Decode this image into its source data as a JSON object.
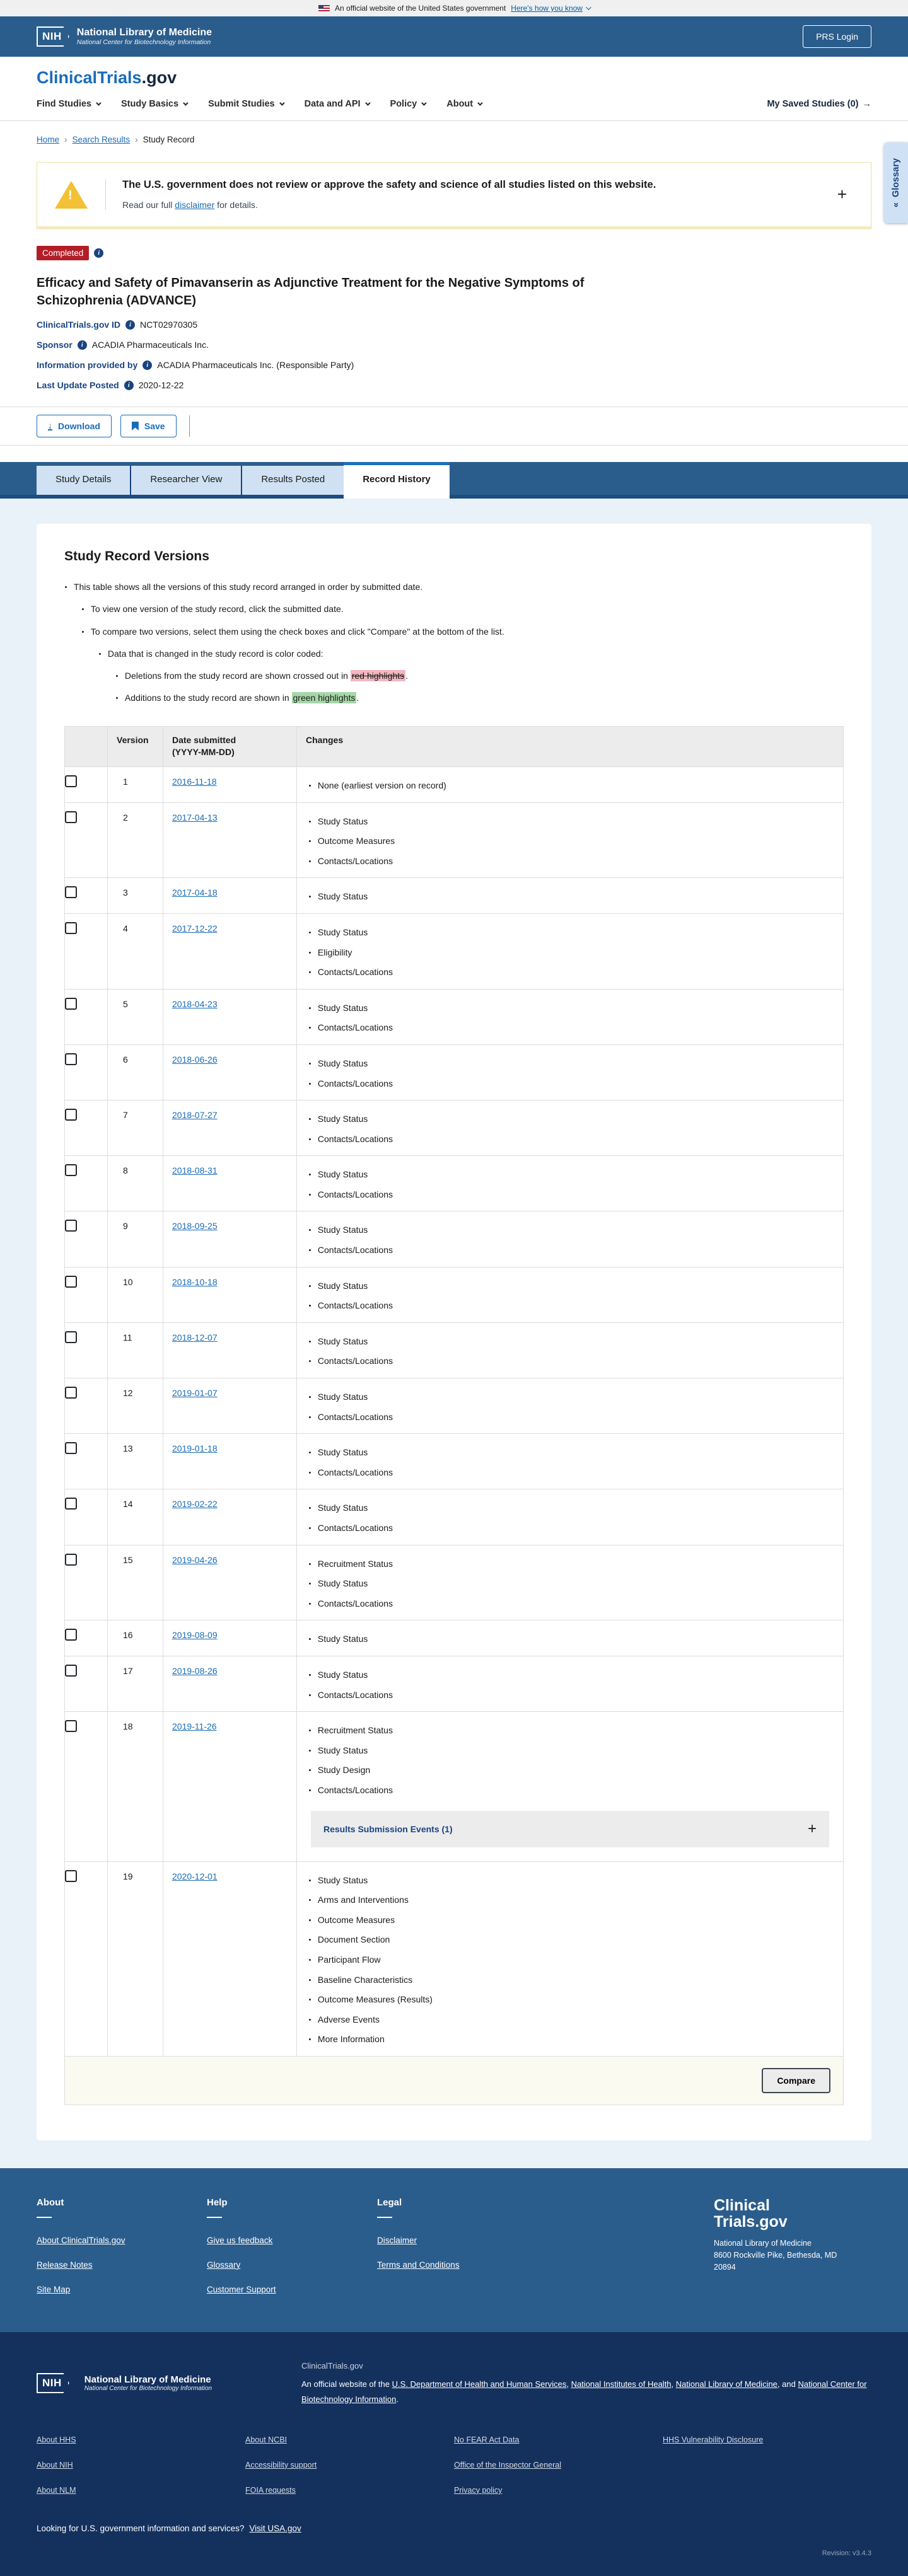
{
  "icons": {
    "flag": "us-flag",
    "caret": "chevron-down",
    "breadcrumb_separator": "›",
    "bullet": "•",
    "plus": "+",
    "chevron_left_double": "«",
    "arrow_right": "→",
    "info": "i",
    "download_arrow": "↓"
  },
  "colors": {
    "header_blue": "#2b5d8c",
    "dark_navy": "#1a4480",
    "accent_blue": "#1c6fbe",
    "link_blue": "#1a6cb8",
    "status_red": "#b21e28",
    "footer_dark": "#14315e",
    "red_highlight": "#f3b7bf",
    "green_highlight": "#a6d7a8"
  },
  "banner": {
    "official": "An official website of the United States government",
    "how": "Here's how you know"
  },
  "nlm_header": {
    "nih": "NIH",
    "org": "National Library of Medicine",
    "sub": "National Center for Biotechnology Information",
    "prs": "PRS Login"
  },
  "site": {
    "logo_main": "ClinicalTrials",
    "logo_suffix": ".gov"
  },
  "nav": {
    "items": [
      {
        "label": "Find Studies"
      },
      {
        "label": "Study Basics"
      },
      {
        "label": "Submit Studies"
      },
      {
        "label": "Data and API"
      },
      {
        "label": "Policy"
      },
      {
        "label": "About"
      }
    ],
    "saved": "My Saved Studies (0)",
    "saved_arrow": "→"
  },
  "breadcrumb": [
    {
      "label": "Home",
      "link": true
    },
    {
      "label": "Search Results",
      "link": true
    },
    {
      "label": "Study Record",
      "link": false
    }
  ],
  "warning": {
    "title": "The U.S. government does not review or approve the safety and science of all studies listed on this website.",
    "body_prefix": "Read our full ",
    "body_link": "disclaimer",
    "body_suffix": " for details.",
    "expand": "+"
  },
  "study": {
    "status": "Completed",
    "title": "Efficacy and Safety of Pimavanserin as Adjunctive Treatment for the Negative Symptoms of Schizophrenia (ADVANCE)",
    "meta": [
      {
        "label": "ClinicalTrials.gov ID",
        "value": "NCT02970305"
      },
      {
        "label": "Sponsor",
        "value": "ACADIA Pharmaceuticals Inc."
      },
      {
        "label": "Information provided by",
        "value": "ACADIA Pharmaceuticals Inc. (Responsible Party)"
      },
      {
        "label": "Last Update Posted",
        "value": "2020-12-22"
      }
    ]
  },
  "actions": {
    "download": "Download",
    "save": "Save"
  },
  "tabs": [
    {
      "label": "Study Details",
      "active": false
    },
    {
      "label": "Researcher View",
      "active": false
    },
    {
      "label": "Results Posted",
      "active": false
    },
    {
      "label": "Record History",
      "active": true
    }
  ],
  "glossary": {
    "label": "Glossary",
    "chevron": "«"
  },
  "record_history": {
    "heading": "Study Record Versions",
    "bullets": [
      {
        "level": 1,
        "text": "This table shows all the versions of this study record arranged in order by submitted date."
      },
      {
        "level": 2,
        "text": "To view one version of the study record, click the submitted date."
      },
      {
        "level": 2,
        "text": "To compare two versions, select them using the check boxes and click \"Compare\" at the bottom of the list."
      },
      {
        "level": 3,
        "text": "Data that is changed in the study record is color coded:"
      },
      {
        "level": 4,
        "pre": "Deletions from the study record are shown crossed out in ",
        "mark": "red highlights",
        "mark_type": "red",
        "post": "."
      },
      {
        "level": 4,
        "pre": "Additions to the study record are shown in ",
        "mark": "green highlights",
        "mark_type": "green",
        "post": "."
      }
    ],
    "table": {
      "headers": {
        "checkbox": "",
        "version": "Version",
        "date_line1": "Date submitted",
        "date_line2": "(YYYY-MM-DD)",
        "changes": "Changes"
      },
      "rows": [
        {
          "version": "1",
          "date": "2016-11-18",
          "changes": [
            "None (earliest version on record)"
          ]
        },
        {
          "version": "2",
          "date": "2017-04-13",
          "changes": [
            "Study Status",
            "Outcome Measures",
            "Contacts/Locations"
          ]
        },
        {
          "version": "3",
          "date": "2017-04-18",
          "changes": [
            "Study Status"
          ]
        },
        {
          "version": "4",
          "date": "2017-12-22",
          "changes": [
            "Study Status",
            "Eligibility",
            "Contacts/Locations"
          ]
        },
        {
          "version": "5",
          "date": "2018-04-23",
          "changes": [
            "Study Status",
            "Contacts/Locations"
          ]
        },
        {
          "version": "6",
          "date": "2018-06-26",
          "changes": [
            "Study Status",
            "Contacts/Locations"
          ]
        },
        {
          "version": "7",
          "date": "2018-07-27",
          "changes": [
            "Study Status",
            "Contacts/Locations"
          ]
        },
        {
          "version": "8",
          "date": "2018-08-31",
          "changes": [
            "Study Status",
            "Contacts/Locations"
          ]
        },
        {
          "version": "9",
          "date": "2018-09-25",
          "changes": [
            "Study Status",
            "Contacts/Locations"
          ]
        },
        {
          "version": "10",
          "date": "2018-10-18",
          "changes": [
            "Study Status",
            "Contacts/Locations"
          ]
        },
        {
          "version": "11",
          "date": "2018-12-07",
          "changes": [
            "Study Status",
            "Contacts/Locations"
          ]
        },
        {
          "version": "12",
          "date": "2019-01-07",
          "changes": [
            "Study Status",
            "Contacts/Locations"
          ]
        },
        {
          "version": "13",
          "date": "2019-01-18",
          "changes": [
            "Study Status",
            "Contacts/Locations"
          ]
        },
        {
          "version": "14",
          "date": "2019-02-22",
          "changes": [
            "Study Status",
            "Contacts/Locations"
          ]
        },
        {
          "version": "15",
          "date": "2019-04-26",
          "changes": [
            "Recruitment Status",
            "Study Status",
            "Contacts/Locations"
          ]
        },
        {
          "version": "16",
          "date": "2019-08-09",
          "changes": [
            "Study Status"
          ]
        },
        {
          "version": "17",
          "date": "2019-08-26",
          "changes": [
            "Study Status",
            "Contacts/Locations"
          ]
        },
        {
          "version": "18",
          "date": "2019-11-26",
          "changes": [
            "Recruitment Status",
            "Study Status",
            "Study Design",
            "Contacts/Locations"
          ],
          "results_panel": {
            "label": "Results Submission Events (1)",
            "expand": "+"
          }
        },
        {
          "version": "19",
          "date": "2020-12-01",
          "changes": [
            "Study Status",
            "Arms and Interventions",
            "Outcome Measures",
            "Document Section",
            "Participant Flow",
            "Baseline Characteristics",
            "Outcome Measures (Results)",
            "Adverse Events",
            "More Information"
          ]
        }
      ],
      "compare": "Compare"
    }
  },
  "footer": {
    "columns": [
      {
        "heading": "About",
        "links": [
          "About ClinicalTrials.gov",
          "Release Notes",
          "Site Map"
        ]
      },
      {
        "heading": "Help",
        "links": [
          "Give us feedback",
          "Glossary",
          "Customer Support"
        ]
      },
      {
        "heading": "Legal",
        "links": [
          "Disclaimer",
          "Terms and Conditions"
        ]
      }
    ],
    "brand": {
      "line1": "Clinical",
      "line2": "Trials.gov",
      "address": [
        "National Library of Medicine",
        "8600 Rockville Pike, Bethesda, MD",
        "20894"
      ]
    },
    "subfooter": {
      "nih": "NIH",
      "org": "National Library of Medicine",
      "sub": "National Center for Biotechnology Information",
      "site": "ClinicalTrials.gov",
      "official_prefix": "An official website of the ",
      "official_links": [
        "U.S. Department of Health and Human Services",
        "National Institutes of Health",
        "National Library of Medicine",
        "National Center for Biotechnology Information"
      ],
      "link_grid": [
        [
          "About HHS",
          "About NIH",
          "About NLM"
        ],
        [
          "About NCBI",
          "Accessibility support",
          "FOIA requests"
        ],
        [
          "No FEAR Act Data",
          "Office of the Inspector General",
          "Privacy policy"
        ],
        [
          "HHS Vulnerability Disclosure"
        ]
      ],
      "usa_prefix": "Looking for U.S. government information and services?",
      "usa_link": "Visit USA.gov",
      "revision": "Revision: v3.4.3"
    }
  }
}
